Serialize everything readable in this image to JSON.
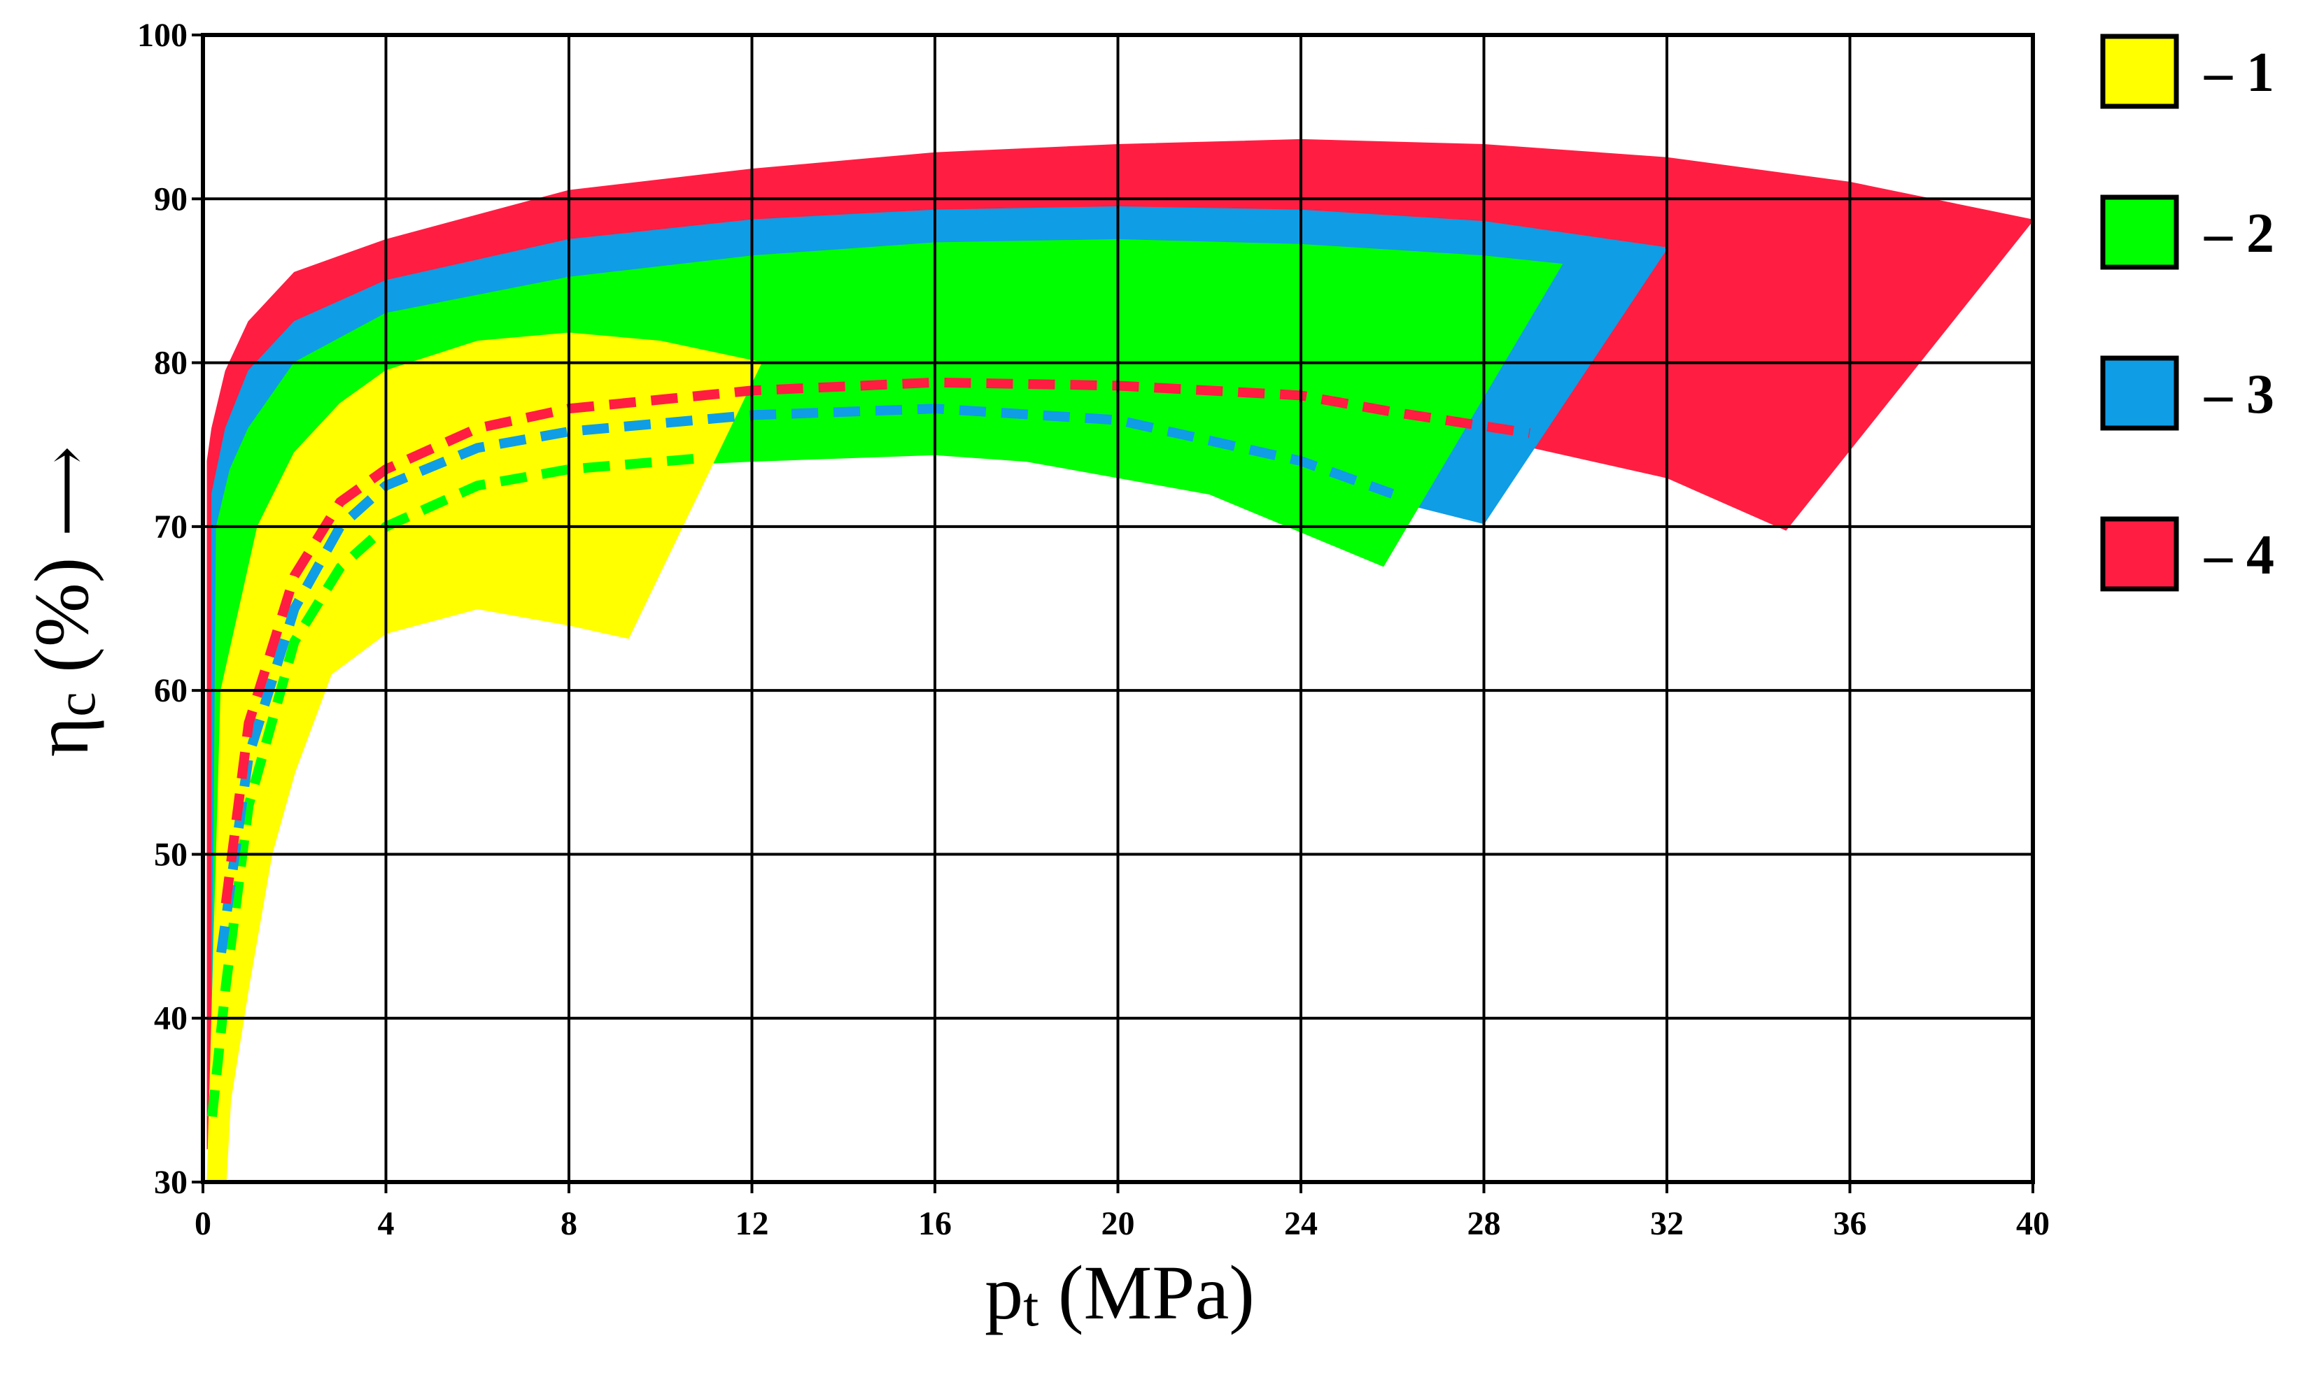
{
  "chart_data": {
    "type": "area",
    "title": "",
    "xlabel": "p",
    "xlabel_subscript": "t",
    "xlabel_unit": " (MPa)",
    "ylabel": "η",
    "ylabel_subscript": "c",
    "ylabel_unit": " (%)",
    "ylabel_arrow": "⟶",
    "xlim": [
      0,
      40
    ],
    "ylim": [
      30,
      100
    ],
    "x_ticks": [
      0,
      4,
      8,
      12,
      16,
      20,
      24,
      28,
      32,
      36,
      40
    ],
    "y_ticks": [
      30,
      40,
      50,
      60,
      70,
      80,
      90,
      100
    ],
    "grid": true,
    "legend_position": "right",
    "series": [
      {
        "name": "4",
        "legend_text": "‒ 4",
        "color": "#ff1e42",
        "upper": [
          [
            0.1,
            74
          ],
          [
            0.2,
            76
          ],
          [
            0.5,
            79.5
          ],
          [
            1,
            82.5
          ],
          [
            2,
            85.5
          ],
          [
            4,
            87.5
          ],
          [
            8,
            90.5
          ],
          [
            12,
            91.8
          ],
          [
            16,
            92.8
          ],
          [
            20,
            93.3
          ],
          [
            24,
            93.6
          ],
          [
            28,
            93.3
          ],
          [
            32,
            92.5
          ],
          [
            36,
            91
          ],
          [
            40,
            88.7
          ]
        ],
        "right_edge": [
          [
            40,
            88.7
          ],
          [
            34.6,
            69.8
          ]
        ],
        "lower": [
          [
            34.6,
            69.8
          ],
          [
            32,
            73
          ],
          [
            28,
            75.5
          ],
          [
            24,
            77.2
          ],
          [
            20,
            78
          ],
          [
            16,
            78.3
          ],
          [
            12,
            78
          ],
          [
            8,
            76.8
          ],
          [
            4,
            73.5
          ],
          [
            2,
            68
          ],
          [
            1,
            59
          ],
          [
            0.5,
            48
          ],
          [
            0.2,
            38
          ],
          [
            0.1,
            32
          ]
        ],
        "lower_dashed": [
          [
            0.5,
            47
          ],
          [
            1,
            58
          ],
          [
            2,
            67
          ],
          [
            3,
            71.5
          ],
          [
            4,
            73.5
          ],
          [
            6,
            76
          ],
          [
            8,
            77.2
          ],
          [
            12,
            78.3
          ],
          [
            16,
            78.8
          ],
          [
            20,
            78.6
          ],
          [
            24,
            78
          ],
          [
            26,
            77
          ],
          [
            29,
            75.7
          ]
        ]
      },
      {
        "name": "3",
        "legend_text": "‒ 3",
        "color": "#0f9de6",
        "upper": [
          [
            0.2,
            72
          ],
          [
            0.5,
            76
          ],
          [
            1,
            79.5
          ],
          [
            2,
            82.5
          ],
          [
            4,
            85
          ],
          [
            8,
            87.5
          ],
          [
            12,
            88.7
          ],
          [
            16,
            89.3
          ],
          [
            20,
            89.5
          ],
          [
            24,
            89.3
          ],
          [
            28,
            88.6
          ],
          [
            32,
            87
          ]
        ],
        "right_edge": [
          [
            32,
            87
          ],
          [
            28,
            70.2
          ]
        ],
        "lower": [
          [
            28,
            70.2
          ],
          [
            24,
            73
          ],
          [
            20,
            75.5
          ],
          [
            16,
            76.8
          ],
          [
            12,
            76.7
          ],
          [
            8,
            75.5
          ],
          [
            4,
            72
          ],
          [
            2,
            66
          ],
          [
            1,
            57
          ],
          [
            0.5,
            46
          ],
          [
            0.2,
            36
          ]
        ],
        "lower_dashed": [
          [
            0.4,
            44
          ],
          [
            1,
            56
          ],
          [
            2,
            65
          ],
          [
            3,
            70
          ],
          [
            4,
            72.5
          ],
          [
            6,
            74.8
          ],
          [
            8,
            75.8
          ],
          [
            12,
            76.8
          ],
          [
            16,
            77.2
          ],
          [
            20,
            76.5
          ],
          [
            24,
            74
          ],
          [
            26,
            72
          ]
        ]
      },
      {
        "name": "2",
        "legend_text": "‒ 2",
        "color": "#00ff00",
        "upper": [
          [
            0.3,
            70
          ],
          [
            0.6,
            73.5
          ],
          [
            1,
            76
          ],
          [
            2,
            80
          ],
          [
            4,
            83
          ],
          [
            8,
            85.2
          ],
          [
            12,
            86.5
          ],
          [
            16,
            87.3
          ],
          [
            20,
            87.5
          ],
          [
            24,
            87.2
          ],
          [
            28,
            86.5
          ],
          [
            29.7,
            86
          ]
        ],
        "right_edge": [
          [
            29.7,
            86
          ],
          [
            25.8,
            67.6
          ]
        ],
        "lower": [
          [
            25.8,
            67.6
          ],
          [
            22,
            72
          ],
          [
            18,
            74
          ],
          [
            16,
            74.4
          ],
          [
            12,
            74
          ],
          [
            8,
            73.5
          ],
          [
            4,
            70
          ],
          [
            2,
            64
          ],
          [
            1,
            54
          ],
          [
            0.5,
            44
          ],
          [
            0.2,
            34
          ]
        ],
        "lower_dashed": [
          [
            0.2,
            34
          ],
          [
            0.5,
            42
          ],
          [
            1,
            53
          ],
          [
            2,
            63
          ],
          [
            3,
            67.5
          ],
          [
            4,
            70
          ],
          [
            6,
            72.5
          ],
          [
            8,
            73.5
          ],
          [
            11,
            74.2
          ]
        ]
      },
      {
        "name": "1",
        "legend_text": "‒ 1",
        "color": "#ffff00",
        "upper": [
          [
            0.4,
            60
          ],
          [
            0.8,
            65
          ],
          [
            1.2,
            70
          ],
          [
            2,
            74.5
          ],
          [
            3,
            77.5
          ],
          [
            4,
            79.5
          ],
          [
            6,
            81.3
          ],
          [
            8,
            81.8
          ],
          [
            10,
            81.3
          ],
          [
            12.2,
            80
          ]
        ],
        "right_edge": [
          [
            12.2,
            80
          ],
          [
            9.3,
            63.2
          ]
        ],
        "lower": [
          [
            9.3,
            63.2
          ],
          [
            8,
            64
          ],
          [
            6,
            65
          ],
          [
            4,
            63.5
          ],
          [
            2.8,
            61
          ],
          [
            2,
            55
          ],
          [
            1.5,
            50
          ],
          [
            1,
            42
          ],
          [
            0.6,
            35
          ],
          [
            0.5,
            30
          ]
        ],
        "left_edge": [
          [
            0.5,
            30
          ],
          [
            0.1,
            30
          ]
        ]
      }
    ]
  }
}
